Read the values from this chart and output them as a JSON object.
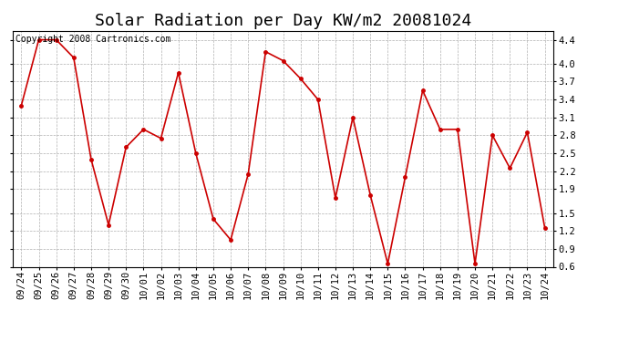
{
  "title": "Solar Radiation per Day KW/m2 20081024",
  "copyright_text": "Copyright 2008 Cartronics.com",
  "dates": [
    "09/24",
    "09/25",
    "09/26",
    "09/27",
    "09/28",
    "09/29",
    "09/30",
    "10/01",
    "10/02",
    "10/03",
    "10/04",
    "10/05",
    "10/06",
    "10/07",
    "10/08",
    "10/09",
    "10/10",
    "10/11",
    "10/12",
    "10/13",
    "10/14",
    "10/15",
    "10/16",
    "10/17",
    "10/18",
    "10/19",
    "10/20",
    "10/21",
    "10/22",
    "10/23",
    "10/24"
  ],
  "values": [
    3.3,
    4.4,
    4.4,
    4.1,
    2.4,
    1.3,
    2.6,
    2.9,
    2.75,
    3.85,
    2.5,
    1.4,
    1.05,
    2.15,
    4.2,
    4.05,
    3.75,
    3.4,
    1.75,
    3.1,
    1.8,
    0.65,
    2.1,
    3.55,
    2.9,
    2.9,
    0.65,
    2.8,
    2.25,
    2.85,
    1.25
  ],
  "line_color": "#cc0000",
  "marker": "o",
  "marker_size": 2.5,
  "line_width": 1.2,
  "ylim": [
    0.6,
    4.55
  ],
  "yticks": [
    0.6,
    0.9,
    1.2,
    1.5,
    1.9,
    2.2,
    2.5,
    2.8,
    3.1,
    3.4,
    3.7,
    4.0,
    4.4
  ],
  "ytick_labels": [
    "0.6",
    "0.9",
    "1.2",
    "1.5",
    "1.9",
    "2.2",
    "2.5",
    "2.8",
    "3.1",
    "3.4",
    "3.7",
    "4.0",
    "4.4"
  ],
  "bg_color": "#ffffff",
  "grid_color": "#b0b0b0",
  "title_fontsize": 13,
  "tick_fontsize": 7.5,
  "copyright_fontsize": 7
}
